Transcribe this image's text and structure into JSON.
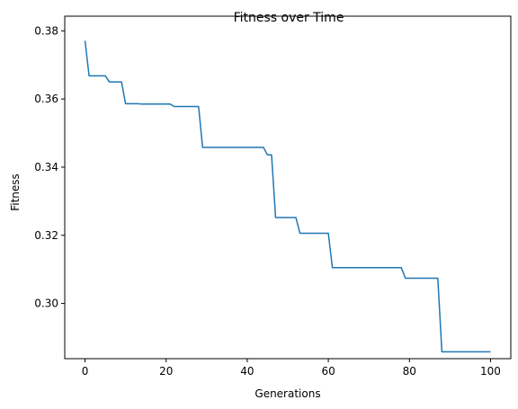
{
  "chart_data": {
    "type": "line",
    "title": "Fitness over Time",
    "xlabel": "Generations",
    "ylabel": "Fitness",
    "xlim": [
      -5,
      105
    ],
    "ylim": [
      0.2838,
      0.3843
    ],
    "xticks": [
      0,
      20,
      40,
      60,
      80,
      100
    ],
    "xtick_labels": [
      "0",
      "20",
      "40",
      "60",
      "80",
      "100"
    ],
    "yticks": [
      0.3,
      0.32,
      0.34,
      0.36,
      0.38
    ],
    "ytick_labels": [
      "0.30",
      "0.32",
      "0.34",
      "0.36",
      "0.38"
    ],
    "grid": false,
    "series": [
      {
        "color": "#1f77b4",
        "x": [
          0,
          1,
          5,
          6,
          9,
          10,
          13,
          14,
          21,
          22,
          28,
          29,
          44,
          45,
          46,
          47,
          52,
          53,
          60,
          61,
          78,
          79,
          87,
          88,
          100
        ],
        "y": [
          0.3771,
          0.3668,
          0.3668,
          0.365,
          0.365,
          0.3586,
          0.3586,
          0.3585,
          0.3585,
          0.3578,
          0.3578,
          0.3458,
          0.3458,
          0.3436,
          0.3436,
          0.3252,
          0.3252,
          0.3206,
          0.3206,
          0.3105,
          0.3105,
          0.3074,
          0.3074,
          0.2858,
          0.2858
        ]
      }
    ]
  }
}
